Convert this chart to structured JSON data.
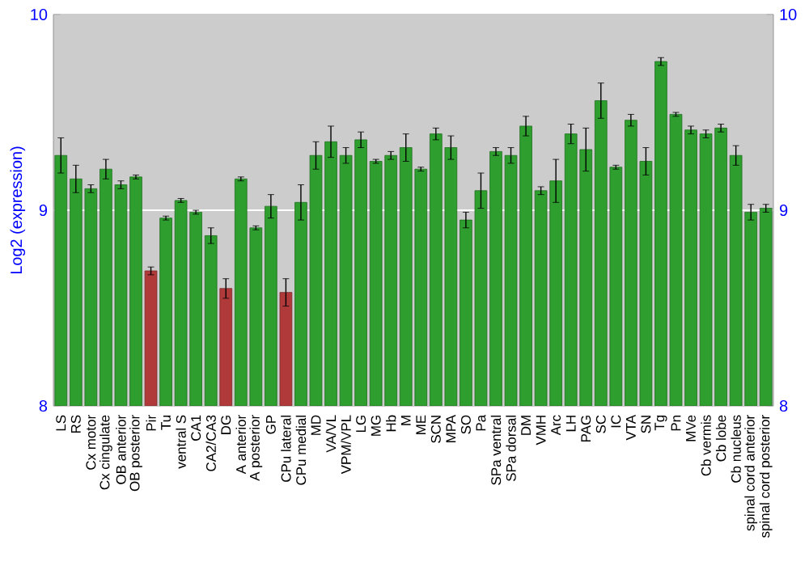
{
  "chart_data": {
    "type": "bar",
    "ylabel": "Log2 (expression)",
    "categories": [
      "LS",
      "RS",
      "Cx motor",
      "Cx cingulate",
      "OB anterior",
      "OB posterior",
      "Pir",
      "Tu",
      "ventral S",
      "CA1",
      "CA2/CA3",
      "DG",
      "A anterior",
      "A posterior",
      "GP",
      "CPu lateral",
      "CPu medial",
      "MD",
      "VA/VL",
      "VPM/VPL",
      "LG",
      "MG",
      "Hb",
      "M",
      "ME",
      "SCN",
      "MPA",
      "SO",
      "Pa",
      "SPa ventral",
      "SPa dorsal",
      "DM",
      "VMH",
      "Arc",
      "LH",
      "PAG",
      "SC",
      "IC",
      "VTA",
      "SN",
      "Tg",
      "Pn",
      "MVe",
      "Cb vermis",
      "Cb lobe",
      "Cb nucleus",
      "spinal cord anterior",
      "spinal cord posterior"
    ],
    "values": [
      9.28,
      9.16,
      9.11,
      9.21,
      9.13,
      9.17,
      8.69,
      8.96,
      9.05,
      8.99,
      8.87,
      8.6,
      9.16,
      8.91,
      9.02,
      8.58,
      9.04,
      9.28,
      9.35,
      9.28,
      9.36,
      9.25,
      9.28,
      9.32,
      9.21,
      9.39,
      9.32,
      8.95,
      9.1,
      9.3,
      9.28,
      9.43,
      9.1,
      9.15,
      9.39,
      9.31,
      9.56,
      9.22,
      9.46,
      9.25,
      9.76,
      9.49,
      9.41,
      9.39,
      9.42,
      9.28,
      8.99,
      9.01
    ],
    "errors": [
      0.09,
      0.07,
      0.02,
      0.05,
      0.02,
      0.01,
      0.02,
      0.01,
      0.01,
      0.01,
      0.04,
      0.05,
      0.01,
      0.01,
      0.06,
      0.07,
      0.09,
      0.07,
      0.08,
      0.04,
      0.04,
      0.01,
      0.02,
      0.07,
      0.01,
      0.03,
      0.06,
      0.04,
      0.09,
      0.02,
      0.04,
      0.05,
      0.02,
      0.11,
      0.05,
      0.11,
      0.09,
      0.01,
      0.03,
      0.07,
      0.02,
      0.01,
      0.02,
      0.02,
      0.02,
      0.05,
      0.04,
      0.02
    ],
    "colors": [
      "#2e9e2e",
      "#2e9e2e",
      "#2e9e2e",
      "#2e9e2e",
      "#2e9e2e",
      "#2e9e2e",
      "#b03a3a",
      "#2e9e2e",
      "#2e9e2e",
      "#2e9e2e",
      "#2e9e2e",
      "#b03a3a",
      "#2e9e2e",
      "#2e9e2e",
      "#2e9e2e",
      "#b03a3a",
      "#2e9e2e",
      "#2e9e2e",
      "#2e9e2e",
      "#2e9e2e",
      "#2e9e2e",
      "#2e9e2e",
      "#2e9e2e",
      "#2e9e2e",
      "#2e9e2e",
      "#2e9e2e",
      "#2e9e2e",
      "#2e9e2e",
      "#2e9e2e",
      "#2e9e2e",
      "#2e9e2e",
      "#2e9e2e",
      "#2e9e2e",
      "#2e9e2e",
      "#2e9e2e",
      "#2e9e2e",
      "#2e9e2e",
      "#2e9e2e",
      "#2e9e2e",
      "#2e9e2e",
      "#2e9e2e",
      "#2e9e2e",
      "#2e9e2e",
      "#2e9e2e",
      "#2e9e2e",
      "#2e9e2e",
      "#2e9e2e",
      "#2e9e2e"
    ],
    "ylim": [
      8,
      10
    ],
    "yticks": [
      8,
      9,
      10
    ],
    "y2lim": [
      8,
      10
    ],
    "y2ticks": [
      8,
      9,
      10
    ],
    "grid": "y"
  }
}
